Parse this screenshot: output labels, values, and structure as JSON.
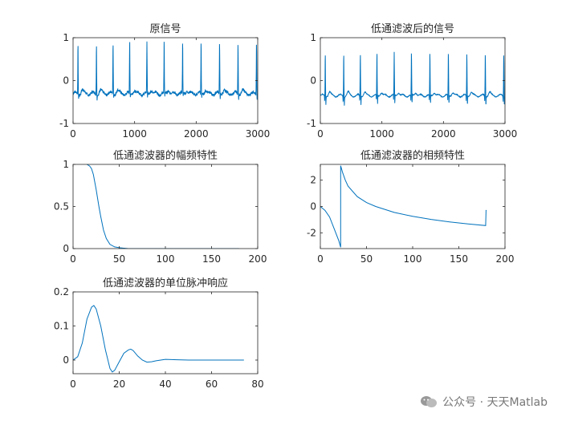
{
  "chart_data": [
    {
      "type": "line",
      "title": "原信号",
      "xlabel": "",
      "ylabel": "",
      "xlim": [
        0,
        3000
      ],
      "ylim": [
        -1,
        1
      ],
      "xticks": [
        0,
        1000,
        2000,
        3000
      ],
      "yticks": [
        -1,
        0,
        1
      ],
      "description": "ECG-like signal, baseline about -0.3 with high-frequency noise; R-peaks reaching about 0.9 roughly every 290 samples",
      "peaks_x": [
        80,
        380,
        650,
        920,
        1200,
        1480,
        1780,
        2080,
        2380,
        2680,
        2980
      ],
      "baseline": -0.3,
      "peak_value": 0.9
    },
    {
      "type": "line",
      "title": "低通滤波后的信号",
      "xlabel": "",
      "ylabel": "",
      "xlim": [
        0,
        3000
      ],
      "ylim": [
        -1,
        1
      ],
      "xticks": [
        0,
        1000,
        2000,
        3000
      ],
      "yticks": [
        -1,
        0,
        1
      ],
      "description": "Smoothed ECG signal, baseline about -0.35, R-peaks about 0.65 with deeper negative dips",
      "peaks_x": [
        80,
        380,
        650,
        920,
        1200,
        1480,
        1780,
        2080,
        2380,
        2680,
        2980
      ],
      "baseline": -0.35,
      "peak_value": 0.65
    },
    {
      "type": "line",
      "title": "低通滤波器的幅频特性",
      "xlabel": "",
      "ylabel": "",
      "xlim": [
        0,
        200
      ],
      "ylim": [
        0,
        1
      ],
      "xticks": [
        0,
        50,
        100,
        150,
        200
      ],
      "yticks": [
        0,
        0.5,
        1
      ],
      "x": [
        15,
        18,
        20,
        22,
        25,
        28,
        30,
        33,
        36,
        40,
        45,
        50,
        55,
        60,
        80,
        100,
        130,
        160,
        180
      ],
      "y": [
        1.0,
        0.98,
        0.95,
        0.88,
        0.7,
        0.5,
        0.38,
        0.22,
        0.12,
        0.05,
        0.02,
        0.01,
        0.005,
        0.0,
        0.0,
        0.0,
        0.0,
        0.0,
        0.0
      ]
    },
    {
      "type": "line",
      "title": "低通滤波器的相频特性",
      "xlabel": "",
      "ylabel": "",
      "xlim": [
        0,
        200
      ],
      "ylim": [
        -3.2,
        3.2
      ],
      "xticks": [
        0,
        50,
        100,
        150,
        200
      ],
      "yticks": [
        -2,
        0,
        2
      ],
      "x": [
        0,
        5,
        10,
        15,
        20,
        22,
        22.01,
        24,
        27,
        30,
        40,
        50,
        60,
        80,
        100,
        120,
        140,
        160,
        179,
        179.5,
        180
      ],
      "y": [
        0,
        -0.3,
        -0.8,
        -1.7,
        -2.6,
        -3.1,
        3.1,
        2.6,
        2.0,
        1.55,
        0.75,
        0.3,
        0.0,
        -0.45,
        -0.75,
        -0.98,
        -1.17,
        -1.33,
        -1.45,
        -0.3,
        -0.3
      ]
    },
    {
      "type": "line",
      "title": "低通滤波器的单位脉冲响应",
      "xlabel": "",
      "ylabel": "",
      "xlim": [
        0,
        80
      ],
      "ylim": [
        -0.04,
        0.2
      ],
      "xticks": [
        0,
        20,
        40,
        60,
        80
      ],
      "yticks": [
        0,
        0.1,
        0.2
      ],
      "x": [
        0,
        2,
        4,
        6,
        8,
        9,
        10,
        12,
        14,
        16,
        17,
        18,
        20,
        22,
        24,
        25,
        26,
        28,
        30,
        32,
        34,
        36,
        38,
        40,
        45,
        50,
        55,
        60,
        65,
        70,
        74
      ],
      "y": [
        0,
        0.01,
        0.05,
        0.12,
        0.155,
        0.16,
        0.15,
        0.1,
        0.03,
        -0.025,
        -0.035,
        -0.03,
        -0.005,
        0.02,
        0.03,
        0.032,
        0.028,
        0.012,
        0.0,
        -0.006,
        -0.005,
        -0.002,
        0.0,
        0.002,
        0.001,
        0.0,
        0.0,
        0.0,
        0.0,
        0.0,
        0.0
      ]
    }
  ],
  "colors": {
    "line": "#0072BD",
    "axis": "#262626"
  },
  "watermark": {
    "text": "公众号 · 天天Matlab",
    "icon": "wechat-icon"
  }
}
